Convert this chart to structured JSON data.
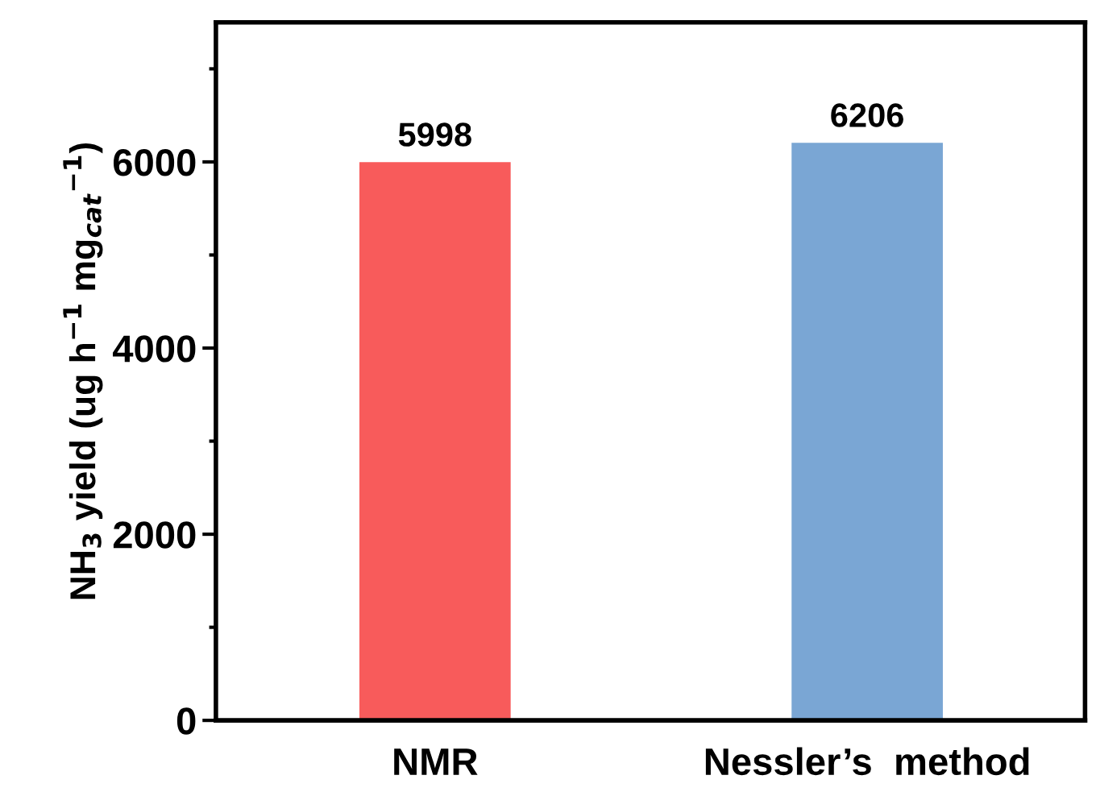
{
  "chart_data": {
    "type": "bar",
    "ylabel": "NH$_{3}$ yield (ug h$^{−1}$ mg$_{cat}$$^{−1}$)",
    "categories": [
      "NMR",
      "Nessler’s  method"
    ],
    "values": [
      5998,
      6206
    ],
    "colors": [
      "#f85b5b",
      "#7aa6d4"
    ],
    "data_labels": true,
    "ylim": [
      0,
      7500
    ],
    "yticks": [
      0,
      {
        "value": 1000,
        "label": null
      },
      2000,
      {
        "value": 3000,
        "label": null
      },
      4000,
      {
        "value": 5000,
        "label": null
      },
      6000,
      {
        "value": 7000,
        "label": null
      }
    ],
    "grid": false,
    "legend": false
  }
}
